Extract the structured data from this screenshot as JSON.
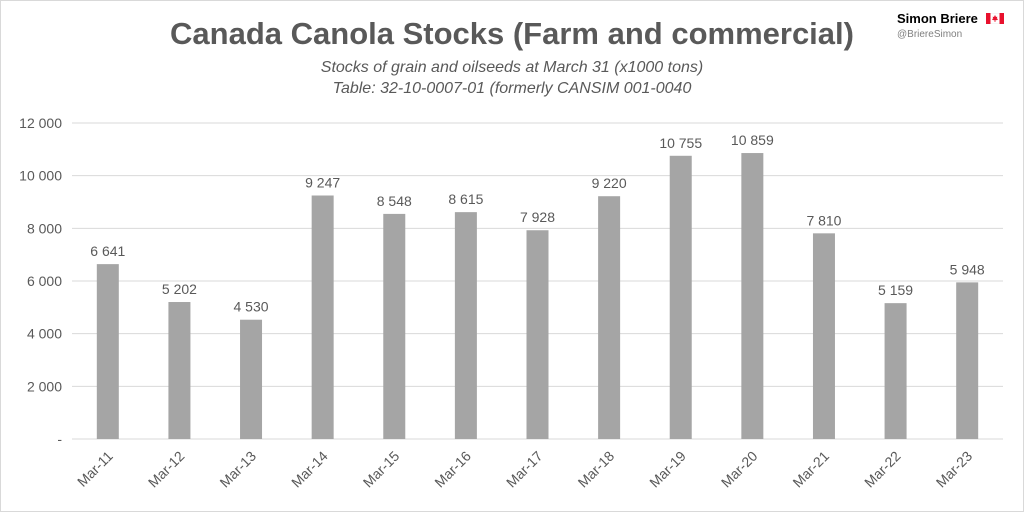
{
  "header": {
    "title": "Canada Canola Stocks (Farm and commercial)",
    "subtitle_line1": "Stocks of grain and oilseeds at March 31 (x1000 tons)",
    "subtitle_line2": "Table: 32-10-0007-01 (formerly CANSIM 001-0040"
  },
  "brand": {
    "name": "Simon Briere",
    "handle": "@BriereSimon",
    "flag_icon": "canada-flag-icon",
    "flag_color": "#e8112d"
  },
  "chart_data": {
    "type": "bar",
    "categories": [
      "Mar-11",
      "Mar-12",
      "Mar-13",
      "Mar-14",
      "Mar-15",
      "Mar-16",
      "Mar-17",
      "Mar-18",
      "Mar-19",
      "Mar-20",
      "Mar-21",
      "Mar-22",
      "Mar-23"
    ],
    "values": [
      6641,
      5202,
      4530,
      9247,
      8548,
      8615,
      7928,
      9220,
      10755,
      10859,
      7810,
      5159,
      5948
    ],
    "value_labels": [
      "6 641",
      "5 202",
      "4 530",
      "9 247",
      "8 548",
      "8 615",
      "7 928",
      "9 220",
      "10 755",
      "10 859",
      "7 810",
      "5 159",
      "5 948"
    ],
    "yticks": [
      0,
      2000,
      4000,
      6000,
      8000,
      10000,
      12000
    ],
    "ytick_labels": [
      "-",
      "2 000",
      "4 000",
      "6 000",
      "8 000",
      "10 000",
      "12 000"
    ],
    "ylim": [
      0,
      12000
    ],
    "grid": true,
    "bar_color": "#a5a5a5",
    "grid_color": "#d9d9d9",
    "text_color": "#595959"
  }
}
